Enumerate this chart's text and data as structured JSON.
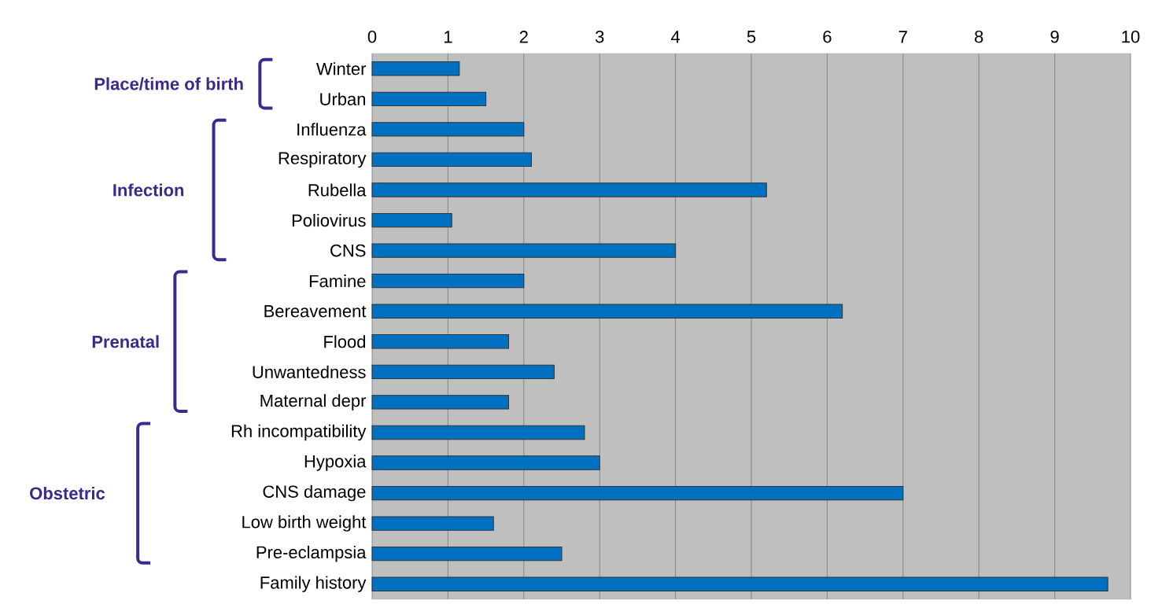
{
  "chart_data": {
    "type": "bar",
    "orientation": "horizontal",
    "categories": [
      "Winter",
      "Urban",
      "Influenza",
      "Respiratory",
      "Rubella",
      "Poliovirus",
      "CNS",
      "Famine",
      "Bereavement",
      "Flood",
      "Unwantedness",
      "Maternal depr",
      "Rh incompatibility",
      "Hypoxia",
      "CNS damage",
      "Low birth weight",
      "Pre-eclampsia",
      "Family history"
    ],
    "values": [
      1.15,
      1.5,
      2.0,
      2.1,
      5.2,
      1.05,
      4.0,
      2.0,
      6.2,
      1.8,
      2.4,
      1.8,
      2.8,
      3.0,
      7.0,
      1.6,
      2.5,
      9.7
    ],
    "color": "#0070c0",
    "xlim": [
      0,
      10
    ],
    "xticks": [
      0,
      1,
      2,
      3,
      4,
      5,
      6,
      7,
      8,
      9,
      10
    ],
    "grid": "x",
    "annotations": [
      "Place/time of birth",
      "Infection",
      "Prenatal",
      "Obstetric"
    ]
  }
}
